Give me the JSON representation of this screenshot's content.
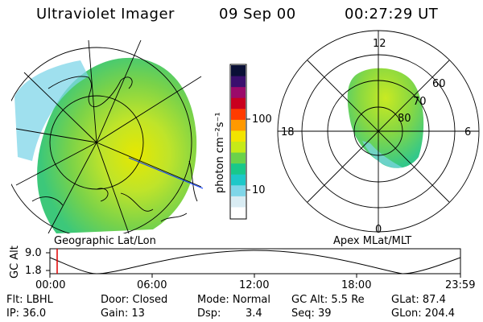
{
  "header": {
    "instrument": "Ultraviolet Imager",
    "date": "09 Sep 00",
    "time": "00:27:29 UT"
  },
  "left_panel": {
    "caption": "Geographic Lat/Lon"
  },
  "right_panel": {
    "caption": "Apex MLat/MLT",
    "mlt_labels": {
      "top": "12",
      "left": "18",
      "right": "6",
      "bottom": "0"
    },
    "lat_labels": [
      "60",
      "70",
      "80"
    ]
  },
  "colorbar": {
    "label": "photon cm⁻²s⁻¹",
    "ticks": [
      "100",
      "10"
    ],
    "colors": [
      "#0a1036",
      "#3a0f6e",
      "#9b0a6a",
      "#c9001e",
      "#ff3b00",
      "#ff9900",
      "#f2e400",
      "#c6ea18",
      "#6ad24a",
      "#19c88a",
      "#1ec8c8",
      "#7fd6e8",
      "#d9ecf3",
      "#ffffff"
    ]
  },
  "timeline": {
    "ylabel": "GC Alt",
    "ytick_high": "9.0",
    "ytick_low": "1.8",
    "xticks": [
      "00:00",
      "06:00",
      "12:00",
      "18:00",
      "23:59"
    ],
    "marker_color": "#e00000"
  },
  "info": {
    "flt": "Flt: LBHL",
    "door": "Door: Closed",
    "mode": "Mode: Normal",
    "gc_alt": "GC Alt: 5.5 Re",
    "glat": "GLat: 87.4",
    "ip": "IP: 36.0",
    "gain": "Gain: 13",
    "dsp_label": "Dsp:",
    "dsp_value": "3.4",
    "seq": "Seq: 39",
    "glon": "GLon: 204.4"
  }
}
